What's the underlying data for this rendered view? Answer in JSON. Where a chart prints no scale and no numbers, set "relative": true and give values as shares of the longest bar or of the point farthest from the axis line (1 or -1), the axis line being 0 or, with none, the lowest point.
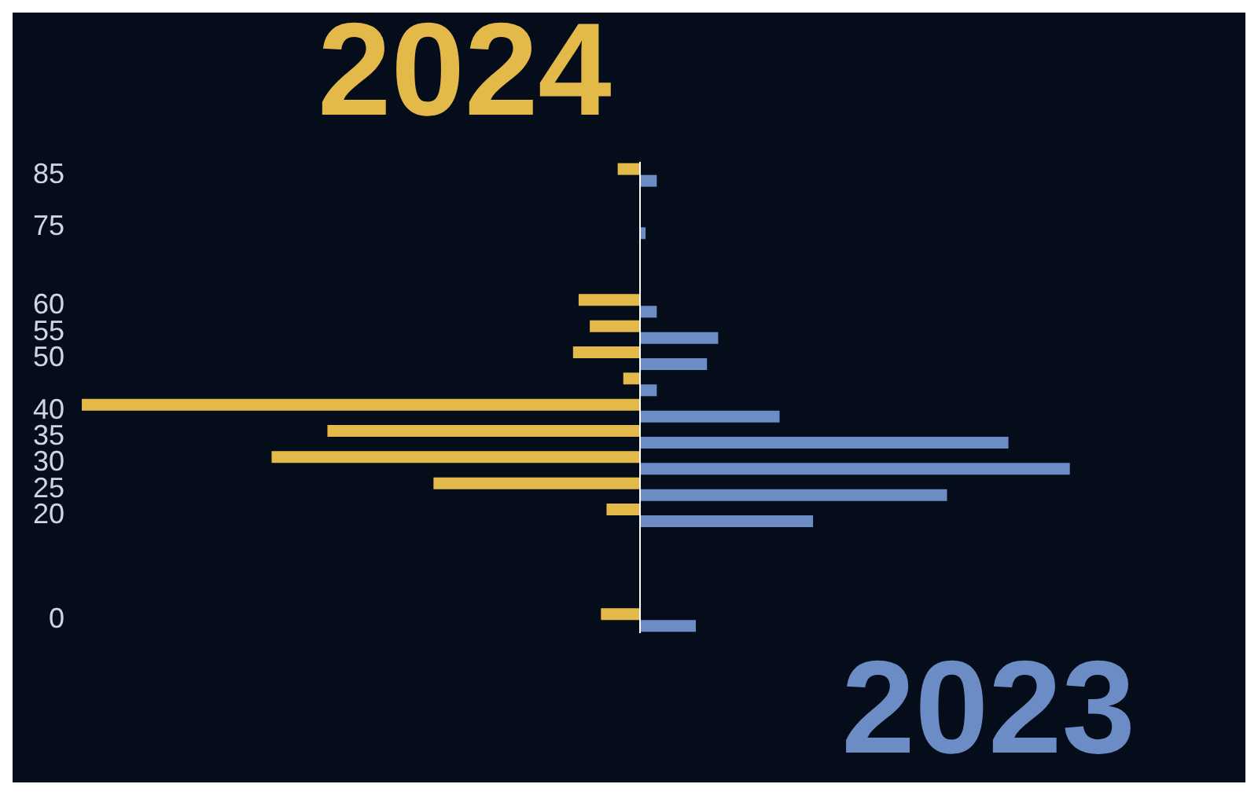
{
  "chart_data": {
    "type": "bar",
    "orientation": "horizontal",
    "relative": true,
    "categories": [
      "85",
      null,
      "75",
      null,
      null,
      "60",
      "55",
      "50",
      null,
      "40",
      "35",
      "30",
      "25",
      "20",
      null,
      null,
      null,
      "0"
    ],
    "series": [
      {
        "name": "2024",
        "color": "#e3b94a",
        "values": [
          -0.04,
          null,
          null,
          null,
          null,
          -0.11,
          -0.09,
          -0.12,
          -0.03,
          -1,
          -0.56,
          -0.66,
          -0.37,
          -0.06,
          null,
          null,
          null,
          -0.07
        ]
      },
      {
        "name": "2023",
        "color": "#6b8cc4",
        "values": [
          0.03,
          null,
          0.01,
          null,
          null,
          0.03,
          0.14,
          0.12,
          0.03,
          0.25,
          0.66,
          0.77,
          0.55,
          0.31,
          null,
          null,
          null,
          0.1
        ]
      }
    ],
    "legend": false
  }
}
